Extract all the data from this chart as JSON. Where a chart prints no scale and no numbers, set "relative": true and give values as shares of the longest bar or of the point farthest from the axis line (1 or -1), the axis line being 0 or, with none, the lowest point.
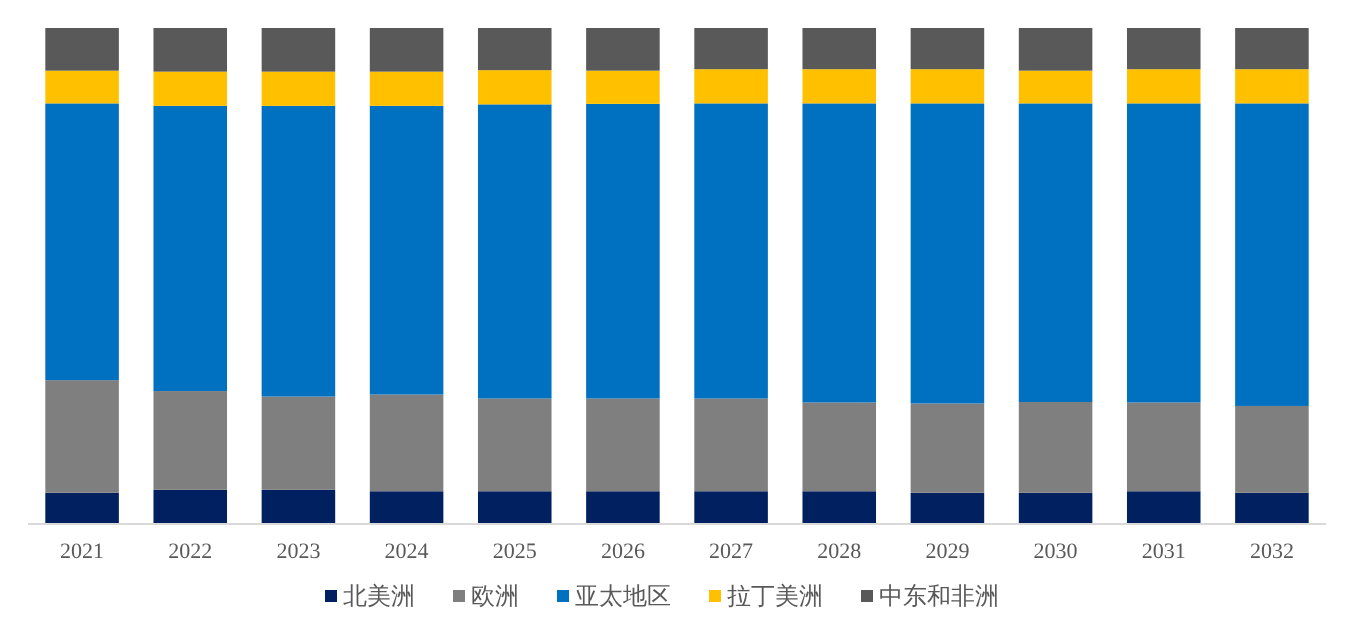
{
  "chart_data": {
    "type": "bar",
    "stacked": true,
    "relative": true,
    "legend": "bottom",
    "categories": [
      "2021",
      "2022",
      "2023",
      "2024",
      "2025",
      "2026",
      "2027",
      "2028",
      "2029",
      "2030",
      "2031",
      "2032"
    ],
    "series": [
      {
        "name": "北美洲",
        "color": "#002060",
        "values": [
          0.063,
          0.069,
          0.069,
          0.066,
          0.066,
          0.066,
          0.066,
          0.066,
          0.063,
          0.063,
          0.066,
          0.063
        ]
      },
      {
        "name": "欧洲",
        "color": "#7f7f7f",
        "values": [
          0.227,
          0.199,
          0.188,
          0.195,
          0.187,
          0.187,
          0.187,
          0.179,
          0.18,
          0.183,
          0.179,
          0.175
        ]
      },
      {
        "name": "亚太地区",
        "color": "#0070c0",
        "values": [
          0.558,
          0.575,
          0.586,
          0.582,
          0.593,
          0.594,
          0.595,
          0.603,
          0.605,
          0.602,
          0.603,
          0.61
        ]
      },
      {
        "name": "拉丁美洲",
        "color": "#ffc000",
        "values": [
          0.066,
          0.069,
          0.069,
          0.069,
          0.069,
          0.067,
          0.069,
          0.069,
          0.069,
          0.066,
          0.069,
          0.069
        ]
      },
      {
        "name": "中东和非洲",
        "color": "#595959",
        "values": [
          0.086,
          0.088,
          0.088,
          0.088,
          0.085,
          0.086,
          0.083,
          0.083,
          0.083,
          0.086,
          0.083,
          0.083
        ]
      }
    ]
  }
}
